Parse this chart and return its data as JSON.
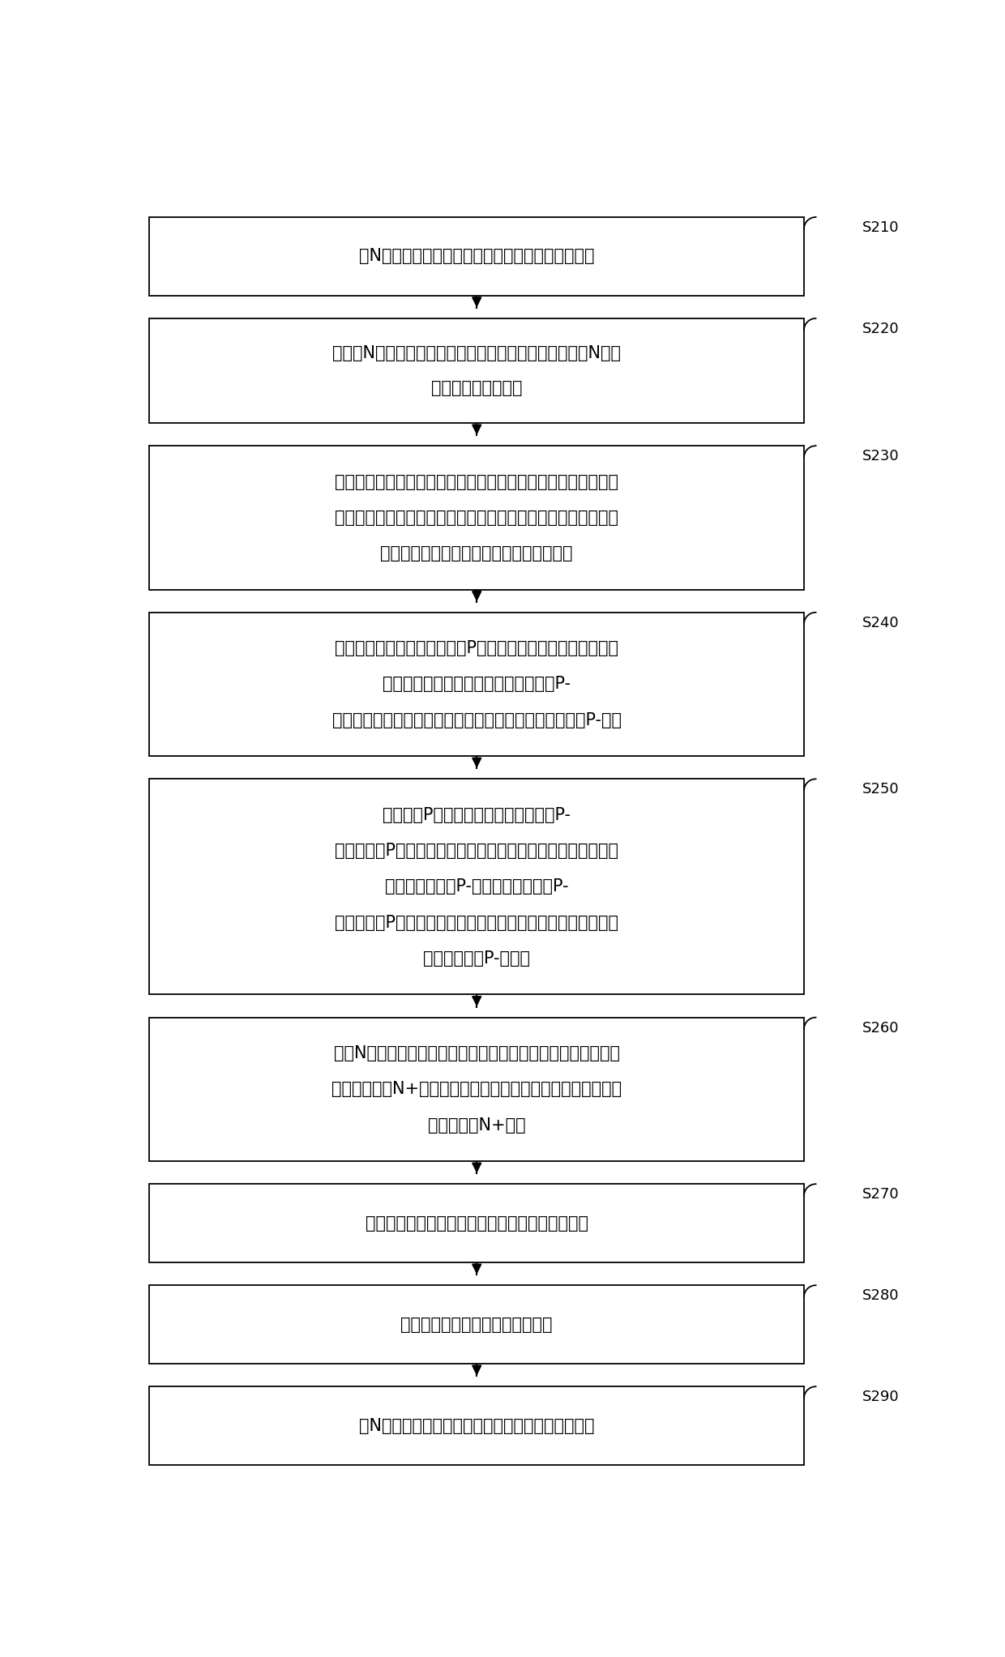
{
  "bg_color": "#ffffff",
  "box_border_color": "#000000",
  "box_fill_color": "#ffffff",
  "arrow_color": "#000000",
  "label_color": "#000000",
  "font_size": 15,
  "label_font_size": 13,
  "steps": [
    {
      "id": "S210",
      "lines": [
        "在N型基底上制作间隔设置的第一沟槽和第二沟槽；"
      ]
    },
    {
      "id": "S220",
      "lines": [
        "在所述N型基底上制作栅氧化层，所述栅氧化层覆盖所述N型基",
        "底及各沟槽的内壁；"
      ]
    },
    {
      "id": "S230",
      "lines": [
        "在所述栅氧化层上制作多晶硅层，所述多晶硅层覆盖所述栅氧化",
        "层的位于所述第一沟槽和所述第二沟槽之间的部分，并且所述多",
        "晶硅层填充所述第一沟槽和所述第二沟槽；"
      ]
    },
    {
      "id": "S240",
      "lines": [
        "以所述多晶硅层为阻挡，进行P型离子的注入，以在所述第一沟",
        "槽的远离所述第二沟槽的一侧形成第一P-",
        "区，在所述第二沟槽的远离所述第一沟槽的一侧形成第二P-区；"
      ]
    },
    {
      "id": "S250",
      "lines": [
        "进行所述P型离子的驱入，使所述第一P-",
        "区中的所述P型离子扩散至所述第一沟槽的靠近所述第二沟槽的",
        "一侧，形成第一P-体区，使所述第二P-",
        "区中的所述P型离子扩散至所述第二沟槽靠近所述第一沟槽的一",
        "侧，形成第二P-体区；"
      ]
    },
    {
      "id": "S260",
      "lines": [
        "进行N型离子的注入，以在所述第一沟槽的远离所述第二沟槽的",
        "一侧形成第一N+区，在所述第二沟槽的远离所述第一沟槽的一",
        "侧形成第二N+区；"
      ]
    },
    {
      "id": "S270",
      "lines": [
        "制作覆盖所述栅氧化层及所述多晶硅层的介质层；"
      ]
    },
    {
      "id": "S280",
      "lines": [
        "在所述介质层上制作第一金属层；"
      ]
    },
    {
      "id": "S290",
      "lines": [
        "在N型基底的远离栅氧化层的一侧制作第二金属层。"
      ]
    }
  ]
}
